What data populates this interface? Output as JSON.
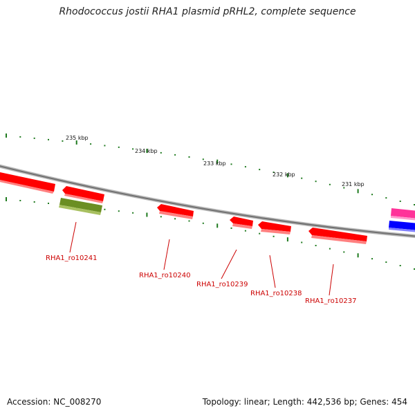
{
  "title": "Rhodococcus jostii RHA1 plasmid pRHL2, complete sequence",
  "footer": {
    "accession": "Accession: NC_008270",
    "summary": "Topology: linear; Length: 442,536 bp; Genes: 454"
  },
  "scale_labels": [
    "235 kbp",
    "234 kbp",
    "233 kbp",
    "232 kbp",
    "231 kbp"
  ],
  "genes": [
    {
      "label": "RHA1_ro10241",
      "color": "#7a9a2a"
    },
    {
      "label": "RHA1_ro10240",
      "color": "#ff0000"
    },
    {
      "label": "RHA1_ro10239",
      "color": "#ff0000"
    },
    {
      "label": "RHA1_ro10238",
      "color": "#ff0000"
    },
    {
      "label": "RHA1_ro10237",
      "color": "#ff0000"
    }
  ],
  "colors": {
    "backbone": "#808080",
    "tick": "#1e7a1e",
    "gene_red": "#ff0000",
    "gene_olive": "#7a9a2a",
    "gene_magenta": "#ff3399",
    "gene_blue": "#0000ff",
    "label": "#cc0000"
  }
}
